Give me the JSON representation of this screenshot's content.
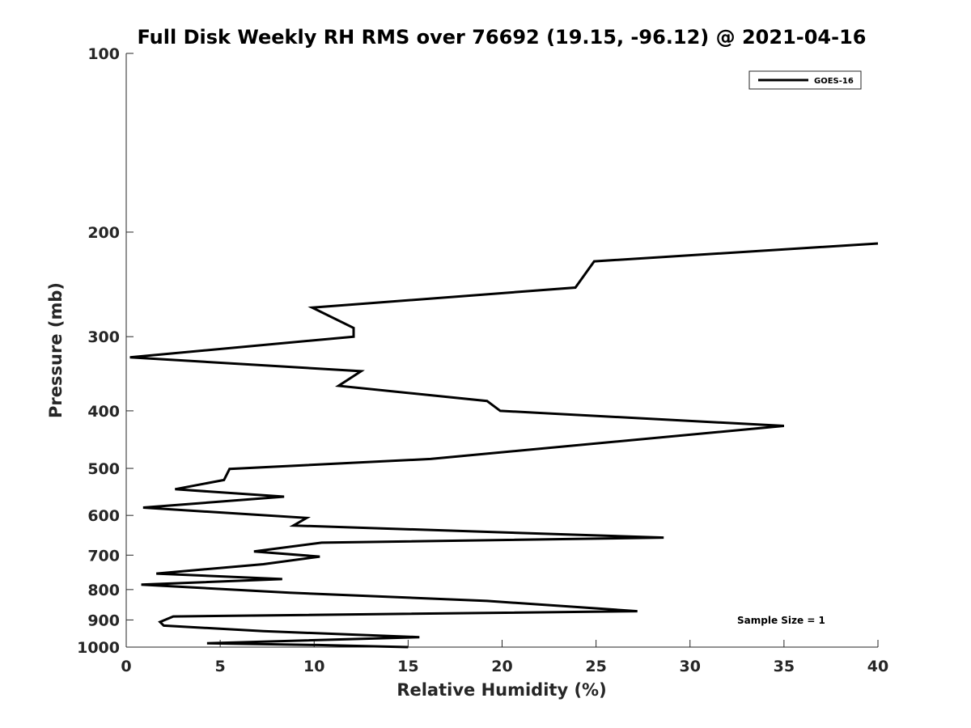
{
  "chart_data": {
    "type": "line",
    "title": "Full Disk Weekly RH RMS over 76692 (19.15, -96.12) @ 2021-04-16",
    "xlabel": "Relative Humidity (%)",
    "ylabel": "Pressure (mb)",
    "xlim": [
      0,
      40
    ],
    "ylim": [
      100,
      1000
    ],
    "y_scale": "log",
    "y_reversed": true,
    "x_ticks": [
      0,
      5,
      10,
      15,
      20,
      25,
      30,
      35,
      40
    ],
    "y_ticks": [
      100,
      200,
      300,
      400,
      500,
      600,
      700,
      800,
      900,
      1000
    ],
    "grid": false,
    "legend": {
      "placement": "top-right",
      "entries": [
        "GOES-16"
      ]
    },
    "annotation": "Sample Size = 1",
    "series": [
      {
        "name": "GOES-16",
        "color": "#000000",
        "x": [
          40.0,
          24.9,
          23.9,
          9.9,
          12.1,
          12.1,
          0.2,
          12.5,
          11.3,
          19.2,
          19.9,
          35.0,
          16.2,
          5.5,
          5.2,
          2.6,
          8.4,
          0.9,
          9.6,
          8.9,
          28.6,
          10.4,
          6.8,
          10.3,
          7.3,
          1.6,
          8.3,
          0.8,
          8.7,
          19.2,
          27.2,
          2.5,
          1.8,
          2.0,
          7.3,
          15.6,
          4.3,
          10.2,
          15.0
        ],
        "y": [
          209,
          224,
          248,
          268,
          290,
          300,
          325,
          343,
          363,
          385,
          400,
          424,
          482,
          501,
          523,
          542,
          558,
          582,
          606,
          624,
          654,
          667,
          690,
          704,
          725,
          752,
          768,
          785,
          810,
          836,
          870,
          888,
          907,
          920,
          940,
          962,
          985,
          992,
          1000
        ]
      }
    ]
  }
}
